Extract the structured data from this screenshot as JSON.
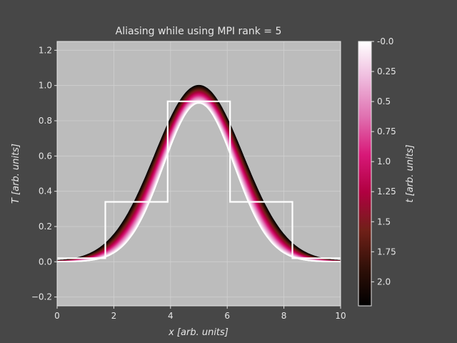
{
  "chart_data": {
    "type": "line",
    "title": "Aliasing while using MPI rank = 5",
    "xlabel": "x [arb. units]",
    "ylabel": "T [arb. units]",
    "xlim": [
      0,
      10
    ],
    "ylim": [
      -0.25,
      1.25
    ],
    "xticks": [
      "0",
      "2",
      "4",
      "6",
      "8",
      "10"
    ],
    "yticks": [
      "−0.2",
      "0.0",
      "0.2",
      "0.4",
      "0.6",
      "0.8",
      "1.0",
      "1.2"
    ],
    "grid": true,
    "background": "#bcbcbc",
    "curve": {
      "description": "Gaussian temperature profile shown for a range of times t, colored by t",
      "center": 5.0,
      "peak": 1.0,
      "t_min": 0.0,
      "t_max": 2.2
    },
    "step_series": {
      "color": "#ffffff",
      "x": [
        0,
        1.7,
        1.7,
        3.9,
        3.9,
        6.1,
        6.1,
        8.3,
        8.3,
        10
      ],
      "y": [
        0.02,
        0.02,
        0.34,
        0.34,
        0.91,
        0.91,
        0.34,
        0.34,
        0.02,
        0.02
      ]
    },
    "colorbar": {
      "label": "t [arb. units]",
      "ticks": [
        "-0.0",
        "0.25",
        "0.5",
        "0.75",
        "1.0",
        "1.25",
        "1.5",
        "1.75",
        "2.0"
      ],
      "tick_values": [
        0.0,
        0.25,
        0.5,
        0.75,
        1.0,
        1.25,
        1.5,
        1.75,
        2.0
      ],
      "range": [
        0.0,
        2.2
      ],
      "colors": [
        "#ffffff",
        "#eeb8dc",
        "#e070b0",
        "#d81878",
        "#b00040",
        "#702018",
        "#301008",
        "#000000"
      ]
    }
  }
}
